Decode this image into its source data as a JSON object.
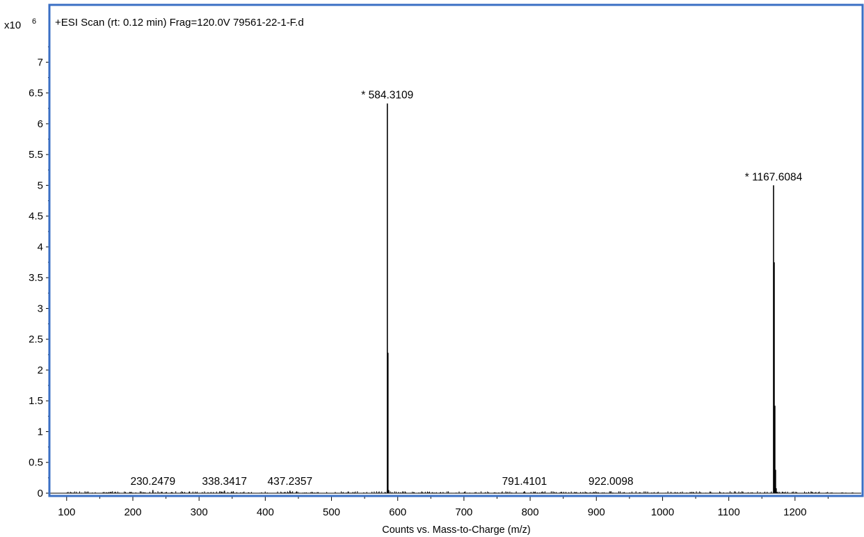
{
  "chart_data": {
    "type": "bar",
    "title": "+ESI Scan (rt: 0.12 min) Frag=120.0V 79561-22-1-F.d",
    "xlabel": "Counts vs. Mass-to-Charge (m/z)",
    "ylabel": "",
    "y_multiplier": {
      "base": "x10",
      "exponent": "6"
    },
    "xlim": [
      75,
      1300
    ],
    "ylim": [
      0,
      7.4
    ],
    "x_ticks": [
      100,
      200,
      300,
      400,
      500,
      600,
      700,
      800,
      900,
      1000,
      1100,
      1200
    ],
    "y_ticks": [
      0,
      0.5,
      1,
      1.5,
      2,
      2.5,
      3,
      3.5,
      4,
      4.5,
      5,
      5.5,
      6,
      6.5,
      7
    ],
    "y_tick_labels": [
      "0",
      "0.5",
      "1",
      "1.5",
      "2",
      "2.5",
      "3",
      "3.5",
      "4",
      "4.5",
      "5",
      "5.5",
      "6",
      "6.5",
      "7"
    ],
    "grid": false,
    "peaks": [
      {
        "mz": 584.3109,
        "intensity": 6.33,
        "label": "* 584.3109"
      },
      {
        "mz": 585.31,
        "intensity": 2.28,
        "label": ""
      },
      {
        "mz": 1167.6084,
        "intensity": 5.0,
        "label": "* 1167.6084"
      },
      {
        "mz": 1168.61,
        "intensity": 3.75,
        "label": ""
      },
      {
        "mz": 1169.61,
        "intensity": 1.42,
        "label": ""
      },
      {
        "mz": 1170.61,
        "intensity": 0.38,
        "label": ""
      },
      {
        "mz": 1171.6,
        "intensity": 0.08,
        "label": ""
      },
      {
        "mz": 586.31,
        "intensity": 0.05,
        "label": ""
      },
      {
        "mz": 230.2479,
        "intensity": 0.05,
        "label": "230.2479"
      },
      {
        "mz": 338.3417,
        "intensity": 0.04,
        "label": "338.3417"
      },
      {
        "mz": 437.2357,
        "intensity": 0.04,
        "label": "437.2357"
      },
      {
        "mz": 791.4101,
        "intensity": 0.03,
        "label": "791.4101"
      },
      {
        "mz": 922.0098,
        "intensity": 0.03,
        "label": "922.0098"
      }
    ],
    "noise_range": [
      100,
      1290
    ],
    "frame_color": "#3a6fc4"
  }
}
